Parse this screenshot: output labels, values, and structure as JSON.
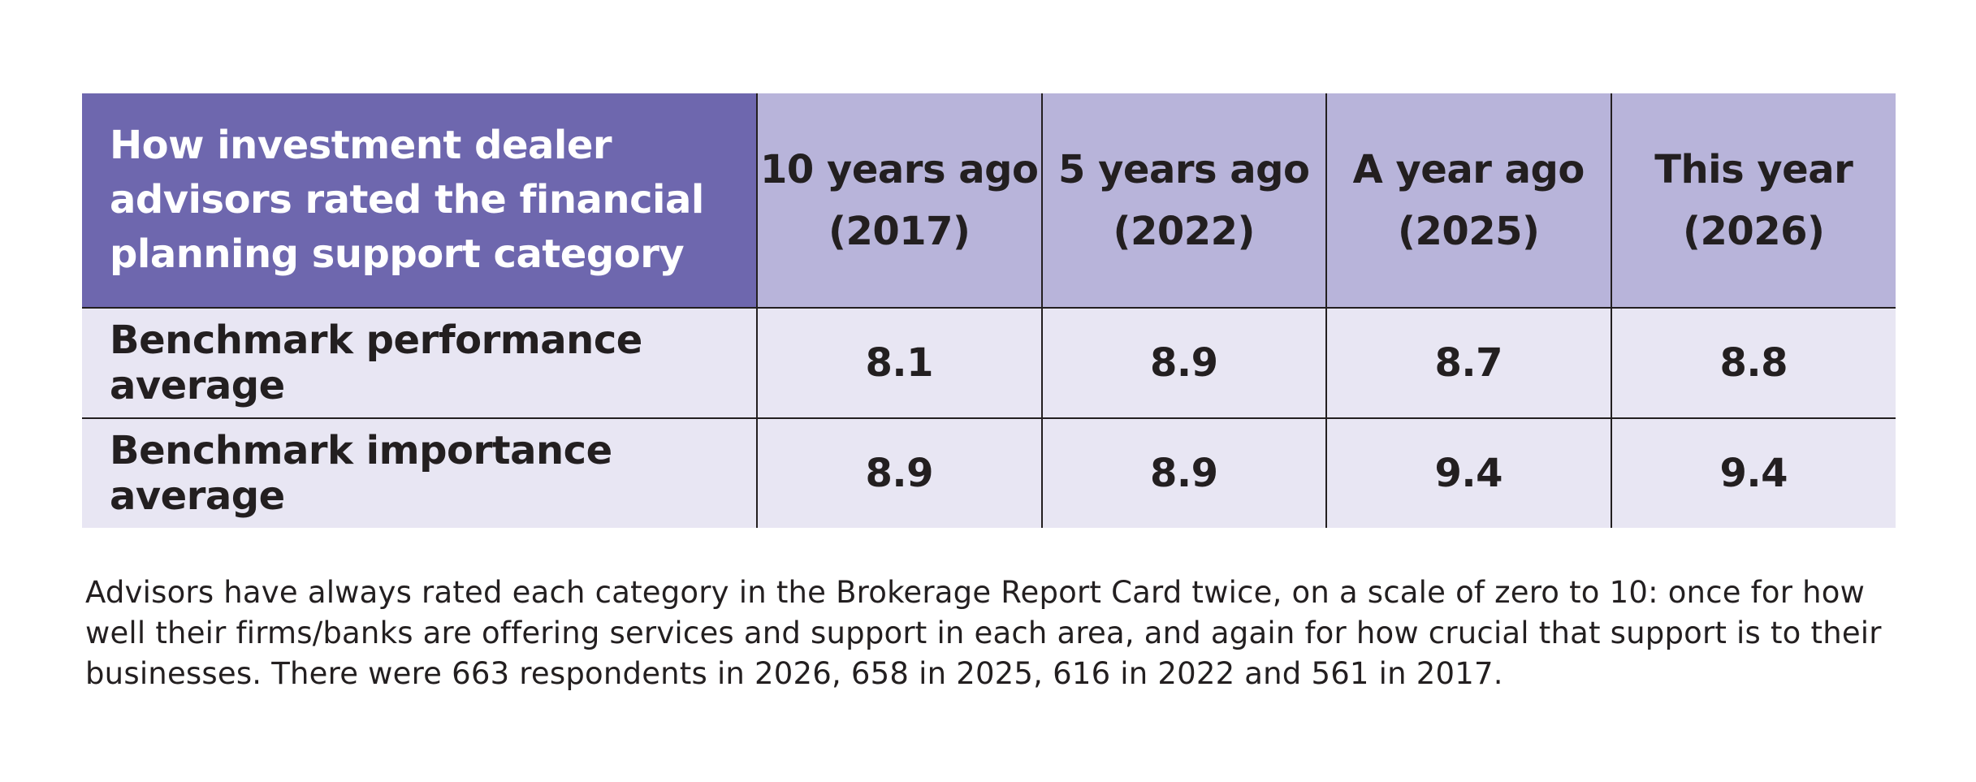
{
  "chart_data": {
    "type": "table",
    "title": "How investment dealer advisors rated the financial planning support category",
    "columns": [
      {
        "line1": "10 years ago",
        "line2": "(2017)"
      },
      {
        "line1": "5 years ago",
        "line2": "(2022)"
      },
      {
        "line1": "A year ago",
        "line2": "(2025)"
      },
      {
        "line1": "This year",
        "line2": "(2026)"
      }
    ],
    "rows": [
      {
        "label": "Benchmark performance average",
        "values": [
          "8.1",
          "8.9",
          "8.7",
          "8.8"
        ]
      },
      {
        "label": "Benchmark importance average",
        "values": [
          "8.9",
          "8.9",
          "9.4",
          "9.4"
        ]
      }
    ]
  },
  "footnote": "Advisors have always rated each category in the Brokerage Report Card twice, on a scale of zero to 10: once for how well their firms/banks are offering services and support in each area, and again for how crucial that support is to their businesses. There were 663 respondents in 2026, 658 in 2025, 616 in 2022 and 561 in 2017.",
  "colors": {
    "header_dark": "#6e67ae",
    "header_light": "#b8b4da",
    "body_fill": "#e8e6f3",
    "text": "#231f20"
  }
}
